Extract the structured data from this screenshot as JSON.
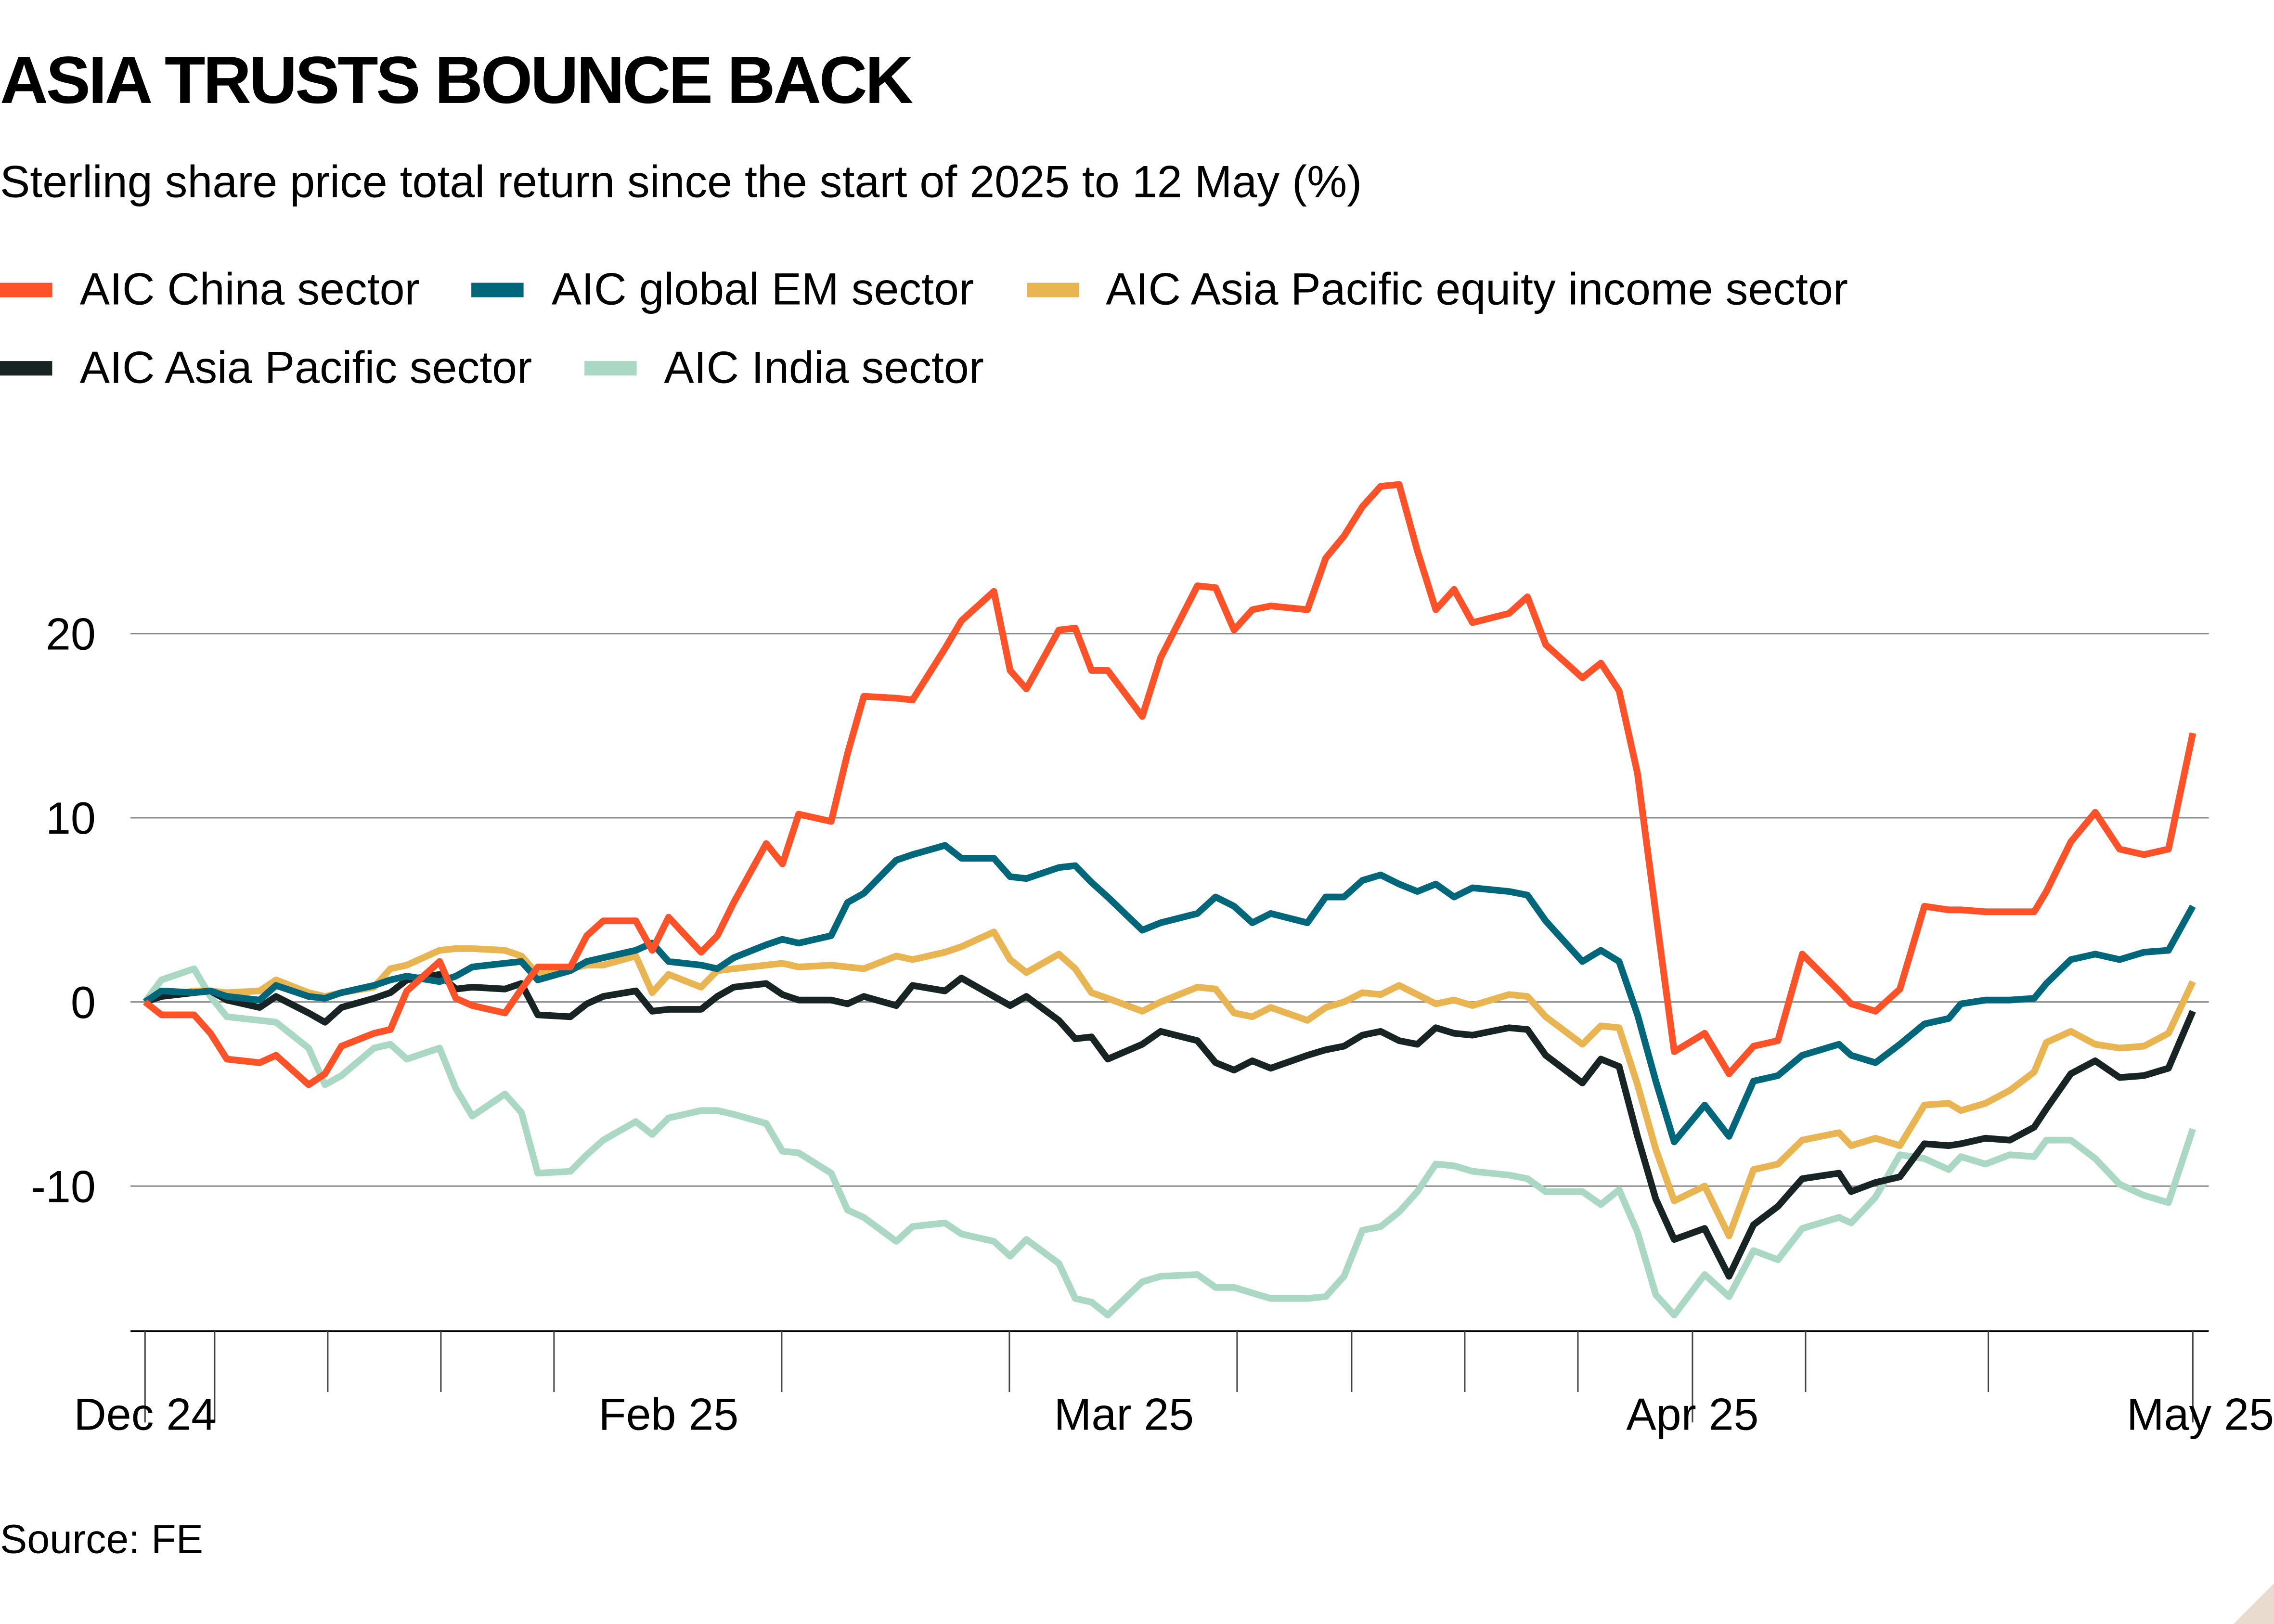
{
  "title": "ASIA TRUSTS BOUNCE BACK",
  "subtitle": "Sterling share price total return since the start of 2025 to 12 May (%)",
  "source": "Source: FE",
  "chart_data": {
    "type": "line",
    "ylim": [
      -18,
      29
    ],
    "grid": true,
    "legend_placement": "top-left",
    "yticks": [
      20,
      10,
      0,
      -10
    ],
    "ytick_labels": [
      "20",
      "10",
      "0",
      "-10"
    ],
    "xtick_labels": [
      "Dec 24",
      "Feb 25",
      "Mar 25",
      "Apr 25",
      "May 25"
    ],
    "xtick_dates": [
      "2024-12-31",
      "2025-02-01",
      "2025-03-01",
      "2025-04-01",
      "2025-05-12"
    ],
    "x": [
      "2024-12-31",
      "2025-01-01",
      "2025-01-03",
      "2025-01-04",
      "2025-01-05",
      "2025-01-07",
      "2025-01-08",
      "2025-01-10",
      "2025-01-11",
      "2025-01-12",
      "2025-01-14",
      "2025-01-15",
      "2025-01-16",
      "2025-01-18",
      "2025-01-19",
      "2025-01-20",
      "2025-01-22",
      "2025-01-23",
      "2025-01-24",
      "2025-01-26",
      "2025-01-27",
      "2025-01-28",
      "2025-01-30",
      "2025-01-31",
      "2025-02-01",
      "2025-02-03",
      "2025-02-04",
      "2025-02-05",
      "2025-02-07",
      "2025-02-08",
      "2025-02-09",
      "2025-02-11",
      "2025-02-12",
      "2025-02-13",
      "2025-02-15",
      "2025-02-16",
      "2025-02-18",
      "2025-02-19",
      "2025-02-21",
      "2025-02-22",
      "2025-02-23",
      "2025-02-25",
      "2025-02-26",
      "2025-02-27",
      "2025-02-28",
      "2025-03-02",
      "2025-03-03",
      "2025-03-05",
      "2025-03-06",
      "2025-03-07",
      "2025-03-08",
      "2025-03-09",
      "2025-03-11",
      "2025-03-12",
      "2025-03-13",
      "2025-03-14",
      "2025-03-15",
      "2025-03-16",
      "2025-03-17",
      "2025-03-18",
      "2025-03-19",
      "2025-03-20",
      "2025-03-22",
      "2025-03-23",
      "2025-03-24",
      "2025-03-26",
      "2025-03-27",
      "2025-03-28",
      "2025-03-29",
      "2025-03-30",
      "2025-03-31",
      "2025-04-02",
      "2025-04-04",
      "2025-04-06",
      "2025-04-08",
      "2025-04-10",
      "2025-04-13",
      "2025-04-14",
      "2025-04-16",
      "2025-04-18",
      "2025-04-20",
      "2025-04-22",
      "2025-04-23",
      "2025-04-25",
      "2025-04-27",
      "2025-04-29",
      "2025-04-30",
      "2025-05-02",
      "2025-05-04",
      "2025-05-06",
      "2025-05-08",
      "2025-05-10",
      "2025-05-12"
    ],
    "series": [
      {
        "name": "AIC China sector",
        "color": "#ff5229",
        "values": [
          0,
          -0.7,
          -0.7,
          -1.7,
          -3.1,
          -3.3,
          -2.9,
          -4.5,
          -3.9,
          -2.4,
          -1.7,
          -1.5,
          0.6,
          2.2,
          0.2,
          -0.2,
          -0.6,
          0.7,
          1.9,
          1.9,
          3.6,
          4.4,
          4.4,
          2.8,
          4.6,
          2.7,
          3.6,
          5.4,
          8.6,
          7.5,
          10.2,
          9.8,
          13.5,
          16.6,
          16.5,
          16.4,
          19.2,
          20.7,
          22.3,
          18.0,
          17.0,
          20.2,
          20.3,
          18.0,
          18.0,
          15.5,
          18.7,
          22.6,
          22.5,
          20.2,
          21.3,
          21.5,
          21.3,
          24.1,
          25.3,
          26.9,
          28.0,
          28.1,
          24.5,
          21.3,
          22.4,
          20.6,
          21.1,
          22.0,
          19.4,
          17.6,
          18.4,
          16.9,
          12.4,
          4.8,
          -2.7,
          -1.7,
          -3.9,
          -2.4,
          -2.1,
          2.6,
          0.6,
          -0.1,
          -0.5,
          0.7,
          5.2,
          5.0,
          5.0,
          4.9,
          4.9,
          4.9,
          6.0,
          8.7,
          10.3,
          8.3,
          8.0,
          8.3,
          14.6
        ]
      },
      {
        "name": "AIC global EM sector",
        "color": "#00677a",
        "values": [
          0,
          0.6,
          0.5,
          0.6,
          0.3,
          0.1,
          0.9,
          0.3,
          0.2,
          0.5,
          0.9,
          1.2,
          1.4,
          1.1,
          1.4,
          1.9,
          2.1,
          2.2,
          1.2,
          1.7,
          2.2,
          2.4,
          2.8,
          3.2,
          2.2,
          2.0,
          1.8,
          2.4,
          3.1,
          3.4,
          3.2,
          3.6,
          5.4,
          5.9,
          7.7,
          8.0,
          8.5,
          7.8,
          7.8,
          6.8,
          6.7,
          7.3,
          7.4,
          6.5,
          5.7,
          3.9,
          4.3,
          4.8,
          5.7,
          5.2,
          4.3,
          4.8,
          4.3,
          5.7,
          5.7,
          6.6,
          6.9,
          6.4,
          6.0,
          6.4,
          5.7,
          6.2,
          6.0,
          5.8,
          4.4,
          2.2,
          2.8,
          2.2,
          -0.7,
          -4.3,
          -7.6,
          -5.6,
          -7.3,
          -4.3,
          -4.0,
          -2.9,
          -2.3,
          -2.9,
          -3.3,
          -2.3,
          -1.2,
          -0.9,
          -0.1,
          0.1,
          0.1,
          0.2,
          1.0,
          2.3,
          2.6,
          2.3,
          2.7,
          2.8,
          5.2
        ]
      },
      {
        "name": "AIC Asia Pacific equity income sector",
        "color": "#e8b552",
        "values": [
          0,
          0.3,
          0.6,
          0.6,
          0.5,
          0.6,
          1.2,
          0.5,
          0.3,
          0.5,
          0.8,
          1.8,
          2.0,
          2.8,
          2.9,
          2.9,
          2.8,
          2.5,
          1.5,
          1.8,
          2.0,
          2.0,
          2.5,
          0.5,
          1.5,
          0.8,
          1.7,
          1.8,
          2.0,
          2.1,
          1.9,
          2.0,
          1.9,
          1.8,
          2.5,
          2.3,
          2.7,
          3.0,
          3.8,
          2.3,
          1.6,
          2.6,
          1.8,
          0.5,
          0.2,
          -0.5,
          0,
          0.8,
          0.7,
          -0.6,
          -0.8,
          -0.3,
          -1.0,
          -0.3,
          0,
          0.5,
          0.4,
          0.9,
          0.4,
          -0.1,
          0.1,
          -0.2,
          0.4,
          0.3,
          -0.8,
          -2.3,
          -1.3,
          -1.4,
          -4.5,
          -8.0,
          -10.8,
          -10.0,
          -12.7,
          -9.1,
          -8.8,
          -7.5,
          -7.1,
          -7.8,
          -7.4,
          -7.8,
          -5.6,
          -5.5,
          -5.9,
          -5.5,
          -4.8,
          -3.8,
          -2.2,
          -1.6,
          -2.3,
          -2.5,
          -2.4,
          -1.7,
          1.1
        ]
      },
      {
        "name": "AIC Asia Pacific sector",
        "color": "#182424",
        "values": [
          0,
          0.3,
          0.5,
          0.6,
          0.1,
          -0.3,
          0.3,
          -0.6,
          -1.1,
          -0.3,
          0.2,
          0.5,
          1.2,
          1.5,
          0.7,
          0.8,
          0.7,
          1.0,
          -0.7,
          -0.8,
          -0.1,
          0.3,
          0.6,
          -0.5,
          -0.4,
          -0.4,
          0.3,
          0.8,
          1.0,
          0.4,
          0.1,
          0.1,
          -0.1,
          0.3,
          -0.2,
          0.9,
          0.6,
          1.3,
          0.3,
          -0.2,
          0.3,
          -1.0,
          -2.0,
          -1.9,
          -3.1,
          -2.3,
          -1.6,
          -2.1,
          -3.3,
          -3.7,
          -3.2,
          -3.6,
          -2.9,
          -2.6,
          -2.4,
          -1.8,
          -1.6,
          -2.1,
          -2.3,
          -1.4,
          -1.7,
          -1.8,
          -1.4,
          -1.5,
          -2.9,
          -4.4,
          -3.1,
          -3.5,
          -7.3,
          -10.7,
          -12.9,
          -12.3,
          -14.9,
          -12.1,
          -11.1,
          -9.6,
          -9.3,
          -10.3,
          -9.8,
          -9.5,
          -7.7,
          -7.8,
          -7.7,
          -7.4,
          -7.5,
          -6.8,
          -5.8,
          -3.9,
          -3.2,
          -4.1,
          -4.0,
          -3.6,
          -0.5
        ]
      },
      {
        "name": "AIC India sector",
        "color": "#aad8c5",
        "values": [
          0,
          1.2,
          1.8,
          0.3,
          -0.8,
          -1.0,
          -1.1,
          -2.5,
          -4.5,
          -4.0,
          -2.5,
          -2.3,
          -3.1,
          -2.5,
          -4.7,
          -6.2,
          -5.0,
          -6.0,
          -9.3,
          -9.2,
          -8.3,
          -7.5,
          -6.5,
          -7.2,
          -6.3,
          -5.9,
          -5.9,
          -6.1,
          -6.6,
          -8.1,
          -8.2,
          -9.3,
          -11.3,
          -11.7,
          -13.0,
          -12.2,
          -12.0,
          -12.6,
          -13.0,
          -13.8,
          -12.9,
          -14.2,
          -16.1,
          -16.3,
          -17.0,
          -15.2,
          -14.9,
          -14.8,
          -15.5,
          -15.5,
          -15.8,
          -16.1,
          -16.1,
          -16.0,
          -14.9,
          -12.4,
          -12.2,
          -11.4,
          -10.3,
          -8.8,
          -8.9,
          -9.2,
          -9.4,
          -9.6,
          -10.3,
          -10.3,
          -11.0,
          -10.2,
          -12.5,
          -15.9,
          -17.0,
          -14.8,
          -16.0,
          -13.5,
          -14.0,
          -12.3,
          -11.7,
          -12.0,
          -10.6,
          -8.3,
          -8.5,
          -9.1,
          -8.4,
          -8.8,
          -8.3,
          -8.4,
          -7.5,
          -7.5,
          -8.5,
          -9.9,
          -10.5,
          -10.9,
          -6.9
        ]
      }
    ]
  }
}
